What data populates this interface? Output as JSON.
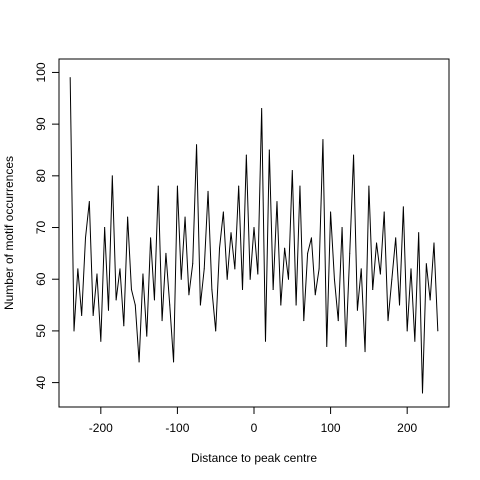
{
  "chart_data": {
    "type": "line",
    "title": "",
    "xlabel": "Distance to peak centre",
    "ylabel": "Number of motif occurrences",
    "xlim": [
      -254.6,
      254.6
    ],
    "ylim": [
      35.28,
      102.6
    ],
    "xticks": [
      -200,
      -100,
      0,
      100,
      200
    ],
    "yticks": [
      40,
      50,
      60,
      70,
      80,
      90,
      100
    ],
    "grid": false,
    "legend": null,
    "line_color": "#000000",
    "series": [
      {
        "x": [
          -240,
          -235,
          -230,
          -225,
          -220,
          -215,
          -210,
          -205,
          -200,
          -195,
          -190,
          -185,
          -180,
          -175,
          -170,
          -165,
          -160,
          -155,
          -150,
          -145,
          -140,
          -135,
          -130,
          -125,
          -120,
          -115,
          -110,
          -105,
          -100,
          -95,
          -90,
          -85,
          -80,
          -75,
          -70,
          -65,
          -60,
          -55,
          -50,
          -45,
          -40,
          -35,
          -30,
          -25,
          -20,
          -15,
          -10,
          -5,
          0,
          5,
          10,
          15,
          20,
          25,
          30,
          35,
          40,
          45,
          50,
          55,
          60,
          65,
          70,
          75,
          80,
          85,
          90,
          95,
          100,
          105,
          110,
          115,
          120,
          125,
          130,
          135,
          140,
          145,
          150,
          155,
          160,
          165,
          170,
          175,
          180,
          185,
          190,
          195,
          200,
          205,
          210,
          215,
          220,
          225,
          230,
          235,
          240
        ],
        "values": [
          99,
          50,
          62,
          53,
          68,
          75,
          53,
          61,
          48,
          70,
          54,
          80,
          56,
          62,
          51,
          72,
          58,
          55,
          44,
          61,
          49,
          68,
          56,
          78,
          52,
          65,
          55,
          44,
          78,
          60,
          72,
          57,
          63,
          86,
          55,
          62,
          77,
          58,
          50,
          66,
          73,
          60,
          69,
          62,
          78,
          58,
          84,
          60,
          70,
          61,
          93,
          48,
          85,
          58,
          75,
          55,
          66,
          60,
          81,
          55,
          78,
          52,
          65,
          68,
          57,
          62,
          87,
          47,
          73,
          60,
          52,
          70,
          47,
          65,
          84,
          54,
          62,
          46,
          78,
          58,
          67,
          61,
          73,
          52,
          60,
          68,
          55,
          74,
          50,
          62,
          48,
          69,
          38,
          63,
          56,
          67,
          50
        ]
      }
    ]
  }
}
